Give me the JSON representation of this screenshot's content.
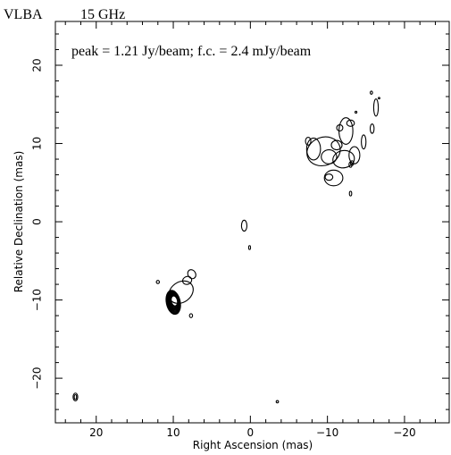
{
  "chart_data": {
    "type": "contour",
    "header": {
      "instrument": "VLBA",
      "frequency": "15 GHz"
    },
    "annotation": "peak = 1.21 Jy/beam;  f.c. = 2.4 mJy/beam",
    "xlabel": "Right Ascension  (mas)",
    "ylabel": "Relative Declination  (mas)",
    "xlim": [
      25.3,
      -25.8
    ],
    "ylim": [
      -25.7,
      25.6
    ],
    "x_reversed": true,
    "xticks_major": [
      20,
      10,
      0,
      -10,
      -20
    ],
    "xtick_labels": [
      "20",
      "10",
      "0",
      "−10",
      "−20"
    ],
    "yticks_major": [
      20,
      10,
      0,
      -10,
      -20
    ],
    "ytick_labels": [
      "20",
      "10",
      "0",
      "−10",
      "−20"
    ],
    "minor_tick_step": 2,
    "grid": false,
    "line_color": "#000000",
    "core": {
      "ra": 10.0,
      "dec": -10.3,
      "levels": 11
    },
    "jet_features": [
      {
        "ra": 9.0,
        "dec": -9.0,
        "rx": 1.7,
        "ry": 1.3,
        "rot": 35
      },
      {
        "ra": 7.6,
        "dec": -6.7,
        "rx": 0.5,
        "ry": 0.6,
        "rot": 30
      },
      {
        "ra": 8.2,
        "dec": -7.5,
        "rx": 0.6,
        "ry": 0.5,
        "rot": 20
      },
      {
        "ra": 12.0,
        "dec": -7.7,
        "rx": 0.2,
        "ry": 0.2,
        "rot": 0
      },
      {
        "ra": 7.7,
        "dec": -12.0,
        "rx": 0.2,
        "ry": 0.25,
        "rot": 0
      }
    ],
    "isolated_components": [
      {
        "ra": 22.7,
        "dec": -22.4,
        "rx": 0.3,
        "ry": 0.5,
        "rot": 0
      },
      {
        "ra": 22.7,
        "dec": -22.4,
        "rx": 0.15,
        "ry": 0.3,
        "rot": 0
      },
      {
        "ra": 0.8,
        "dec": -0.5,
        "rx": 0.35,
        "ry": 0.7,
        "rot": 0
      },
      {
        "ra": 0.1,
        "dec": -3.3,
        "rx": 0.12,
        "ry": 0.25,
        "rot": 0
      },
      {
        "ra": -3.5,
        "dec": -23.0,
        "rx": 0.15,
        "ry": 0.15,
        "rot": 0
      }
    ],
    "lobe_components": [
      {
        "ra": -9.5,
        "dec": 9.0,
        "rx": 2.2,
        "ry": 1.8,
        "rot": 20
      },
      {
        "ra": -10.2,
        "dec": 8.3,
        "rx": 1.0,
        "ry": 0.9,
        "rot": 0
      },
      {
        "ra": -11.2,
        "dec": 9.8,
        "rx": 0.7,
        "ry": 0.6,
        "rot": 0
      },
      {
        "ra": -8.2,
        "dec": 9.3,
        "rx": 0.9,
        "ry": 1.4,
        "rot": 0
      },
      {
        "ra": -12.4,
        "dec": 11.6,
        "rx": 0.9,
        "ry": 1.7,
        "rot": 0
      },
      {
        "ra": -12.1,
        "dec": 8.0,
        "rx": 1.4,
        "ry": 1.1,
        "rot": 10
      },
      {
        "ra": -10.8,
        "dec": 5.6,
        "rx": 1.2,
        "ry": 1.0,
        "rot": 0
      },
      {
        "ra": -10.2,
        "dec": 5.7,
        "rx": 0.5,
        "ry": 0.4,
        "rot": 0
      },
      {
        "ra": -13.5,
        "dec": 8.5,
        "rx": 0.7,
        "ry": 1.1,
        "rot": 0
      },
      {
        "ra": -14.7,
        "dec": 10.2,
        "rx": 0.3,
        "ry": 0.9,
        "rot": 0
      },
      {
        "ra": -13.0,
        "dec": 12.6,
        "rx": 0.5,
        "ry": 0.4,
        "rot": 0
      },
      {
        "ra": -11.6,
        "dec": 12.0,
        "rx": 0.4,
        "ry": 0.4,
        "rot": 0
      },
      {
        "ra": -7.5,
        "dec": 10.3,
        "rx": 0.35,
        "ry": 0.5,
        "rot": 0
      },
      {
        "ra": -15.8,
        "dec": 11.9,
        "rx": 0.25,
        "ry": 0.6,
        "rot": 0
      },
      {
        "ra": -16.3,
        "dec": 14.6,
        "rx": 0.3,
        "ry": 1.1,
        "rot": 0
      },
      {
        "ra": -15.7,
        "dec": 16.5,
        "rx": 0.15,
        "ry": 0.2,
        "rot": 0
      },
      {
        "ra": -16.7,
        "dec": 15.8,
        "rx": 0.1,
        "ry": 0.1,
        "rot": 0
      },
      {
        "ra": -13.7,
        "dec": 14.0,
        "rx": 0.12,
        "ry": 0.12,
        "rot": 0
      },
      {
        "ra": -13.0,
        "dec": 7.3,
        "rx": 0.2,
        "ry": 0.35,
        "rot": 0
      },
      {
        "ra": -13.2,
        "dec": 7.5,
        "rx": 0.2,
        "ry": 0.3,
        "rot": 0
      },
      {
        "ra": -13.0,
        "dec": 3.6,
        "rx": 0.15,
        "ry": 0.3,
        "rot": 0
      }
    ]
  }
}
